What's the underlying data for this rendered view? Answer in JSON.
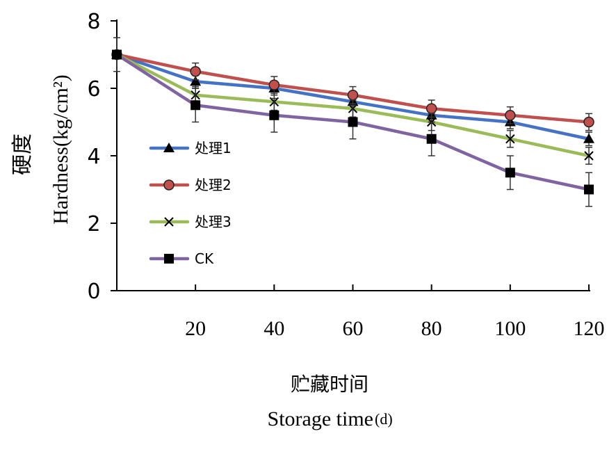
{
  "chart_data": {
    "type": "line",
    "x": [
      0,
      20,
      40,
      60,
      80,
      100,
      120
    ],
    "xticks": [
      "20",
      "40",
      "60",
      "80",
      "100",
      "120"
    ],
    "xlim": [
      0,
      120
    ],
    "yticks": [
      "0",
      "2",
      "4",
      "6",
      "8"
    ],
    "ylim": [
      0,
      8
    ],
    "ylabel_cn": "硬度",
    "ylabel_en": "Hardness(kg/cm²)",
    "xlabel_cn": "贮藏时间",
    "xlabel_en": "Storage time",
    "xlabel_unit": "(d)",
    "grid": false,
    "legend_position": "left-center",
    "series": [
      {
        "name": "处理1",
        "color": "#4472C4",
        "marker": "triangle",
        "values": [
          7.0,
          6.2,
          6.0,
          5.6,
          5.2,
          5.0,
          4.5
        ],
        "errors": [
          0.5,
          0.2,
          0.2,
          0.2,
          0.2,
          0.2,
          0.2
        ]
      },
      {
        "name": "处理2",
        "color": "#C0504D",
        "marker": "circle",
        "values": [
          7.0,
          6.5,
          6.1,
          5.8,
          5.4,
          5.2,
          5.0
        ],
        "errors": [
          0.5,
          0.25,
          0.25,
          0.25,
          0.25,
          0.25,
          0.25
        ]
      },
      {
        "name": "处理3",
        "color": "#9BBB59",
        "marker": "x",
        "values": [
          7.0,
          5.8,
          5.6,
          5.4,
          5.0,
          4.5,
          4.0
        ],
        "errors": [
          0.5,
          0.25,
          0.25,
          0.25,
          0.25,
          0.25,
          0.25
        ]
      },
      {
        "name": "CK",
        "color": "#8064A2",
        "marker": "square",
        "values": [
          7.0,
          5.5,
          5.2,
          5.0,
          4.5,
          3.5,
          3.0
        ],
        "errors": [
          0.5,
          0.5,
          0.5,
          0.5,
          0.5,
          0.5,
          0.5
        ]
      }
    ]
  }
}
